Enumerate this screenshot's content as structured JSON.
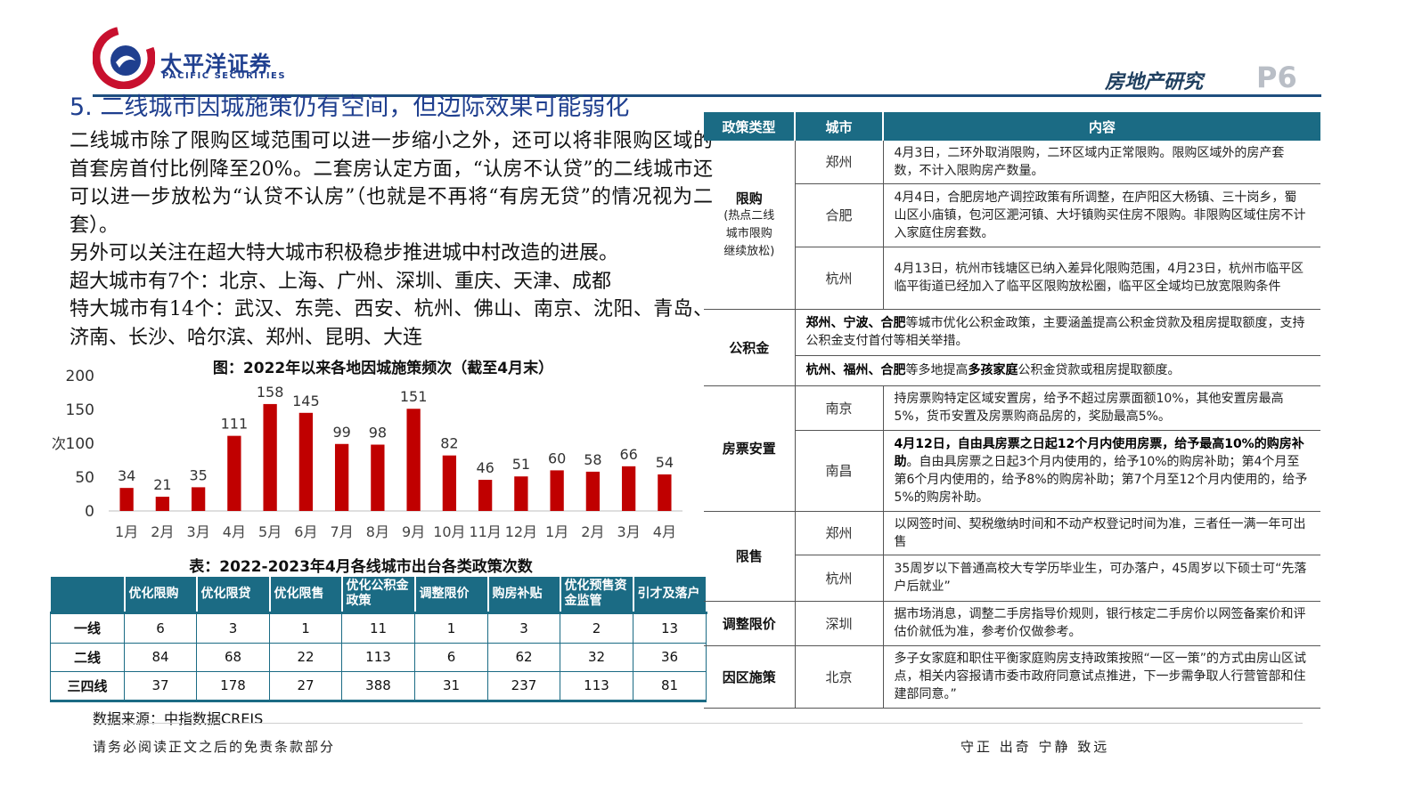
{
  "header": {
    "company_cn": "太平洋证券",
    "company_en": "PACIFIC SECURITIES",
    "section": "房地产研究",
    "page": "P6"
  },
  "title": "5. 二线城市因城施策仍有空间，但边际效果可能弱化",
  "paragraphs": [
    "二线城市除了限购区域范围可以进一步缩小之外，还可以将非限购区域的首套房首付比例降至20%。二套房认定方面，“认房不认贷”的二线城市还可以进一步放松为“认贷不认房”（也就是不再将“有房无贷”的情况视为二套）。",
    "另外可以关注在超大特大城市积极稳步推进城中村改造的进展。",
    "超大城市有7个：北京、上海、广州、深圳、重庆、天津、成都",
    "特大城市有14个：武汉、东莞、西安、杭州、佛山、南京、沈阳、青岛、济南、长沙、哈尔滨、郑州、昆明、大连"
  ],
  "chart_data": {
    "type": "bar",
    "title": "图：2022年以来各地因城施策频次（截至4月末）",
    "ylabel": "次",
    "ylim": [
      0,
      200
    ],
    "yticks": [
      0,
      50,
      100,
      150,
      200
    ],
    "categories": [
      "1月",
      "2月",
      "3月",
      "4月",
      "5月",
      "6月",
      "7月",
      "8月",
      "9月",
      "10月",
      "11月",
      "12月",
      "1月",
      "2月",
      "3月",
      "4月"
    ],
    "values": [
      34,
      21,
      35,
      111,
      158,
      145,
      99,
      98,
      151,
      82,
      46,
      51,
      60,
      58,
      66,
      54
    ],
    "bar_color": "#c00000",
    "grid": false
  },
  "stats_table": {
    "title": "表：2022-2023年4月各线城市出台各类政策次数",
    "headers": [
      "",
      "优化限购",
      "优化限贷",
      "优化限售",
      "优化公积金政策",
      "调整限价",
      "购房补贴",
      "优化预售资金监管",
      "引才及落户"
    ],
    "rows": [
      {
        "name": "一线",
        "values": [
          "6",
          "3",
          "1",
          "11",
          "1",
          "3",
          "2",
          "13"
        ]
      },
      {
        "name": "二线",
        "values": [
          "84",
          "68",
          "22",
          "113",
          "6",
          "62",
          "32",
          "36"
        ]
      },
      {
        "name": "三四线",
        "values": [
          "37",
          "178",
          "27",
          "388",
          "31",
          "237",
          "113",
          "81"
        ]
      }
    ],
    "source": "数据来源：中指数据CREIS"
  },
  "policy_table": {
    "headers": {
      "type": "政策类型",
      "city": "城市",
      "content": "内容"
    },
    "groups": {
      "restrict_buy": {
        "type": "限购",
        "note_lines": [
          "(热点二线",
          "城市限购",
          "继续放松)"
        ],
        "rows": [
          {
            "city": "郑州",
            "content": "4月3日，二环外取消限购，二环区域内正常限购。限购区域外的房产套数，不计入限购房产数量。"
          },
          {
            "city": "合肥",
            "content": "4月4日，合肥房地产调控政策有所调整，在庐阳区大杨镇、三十岗乡，蜀山区小庙镇，包河区淝河镇、大圩镇购买住房不限购。非限购区域住房不计入家庭住房套数。"
          },
          {
            "city": "杭州",
            "content": "4月13日，杭州市钱塘区已纳入差异化限购范围，4月23日，杭州市临平区临平街道已经加入了临平区限购放松圈，临平区全域均已放宽限购条件"
          }
        ]
      },
      "fund": {
        "type": "公积金",
        "row1": {
          "bold": "郑州、宁波、合肥",
          "text": "等城市优化公积金政策，主要涵盖提高公积金贷款及租房提取额度，支持公积金支付首付等相关举措。"
        },
        "row2": {
          "bold1": "杭州、福州、合肥",
          "mid": "等多地提高",
          "bold2": "多孩家庭",
          "text": "公积金贷款或租房提取额度。"
        }
      },
      "voucher": {
        "type": "房票安置",
        "nanjing": {
          "city": "南京",
          "content": "持房票购特定区域安置房，给予不超过房票面额10%，其他安置房最高5%，货币安置及房票购商品房的，奖励最高5%。"
        },
        "nanchang": {
          "city": "南昌",
          "bold": "4月12日，自由具房票之日起12个月内使用房票，给予最高10%的购房补助",
          "text": "。自由具房票之日起3个月内使用的，给予10%的购房补助；第4个月至第6个月内使用的，给予8%的购房补助；第7个月至12个月内使用的，给予5%的购房补助。"
        }
      },
      "restrict_sale": {
        "type": "限售",
        "rows": [
          {
            "city": "郑州",
            "content": "以网签时间、契税缴纳时间和不动产权登记时间为准，三者任一满一年可出售"
          },
          {
            "city": "杭州",
            "content": "35周岁以下普通高校大专学历毕业生，可办落户，45周岁以下硕士可“先落户后就业”"
          }
        ]
      },
      "price": {
        "type": "调整限价",
        "city": "深圳",
        "content": "据市场消息，调整二手房指导价规则，银行核定二手房价以网签备案价和评估价就低为准，参考价仅做参考。"
      },
      "district": {
        "type": "因区施策",
        "city": "北京",
        "content": "多子女家庭和职住平衡家庭购房支持政策按照“一区一策”的方式由房山区试点，相关内容报请市委市政府同意试点推进，下一步需争取人行营管部和住建部同意。”"
      }
    }
  },
  "footer": {
    "disclaimer": "请务必阅读正文之后的免责条款部分",
    "slogan": "守正 出奇 宁静 致远"
  }
}
